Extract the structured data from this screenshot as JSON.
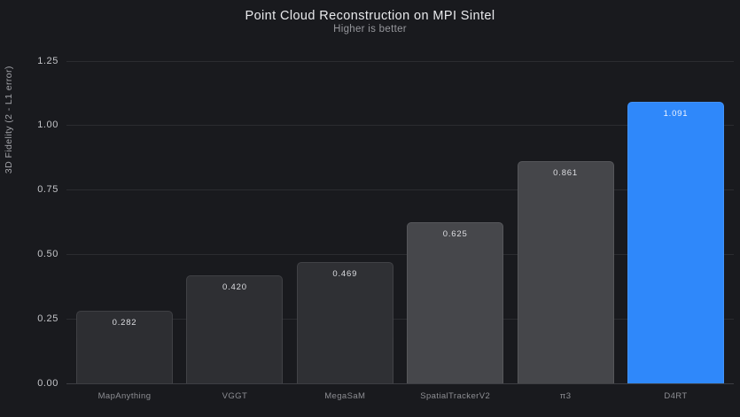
{
  "chart_data": {
    "type": "bar",
    "title": "Point Cloud Reconstruction on MPI Sintel",
    "subtitle": "Higher is better",
    "ylabel": "3D Fidelity (2 - L1 error)",
    "xlabel": "",
    "categories": [
      "MapAnything",
      "VGGT",
      "MegaSaM",
      "SpatialTrackerV2",
      "π3",
      "D4RT"
    ],
    "values": [
      0.282,
      0.42,
      0.469,
      0.625,
      0.861,
      1.091
    ],
    "value_labels": [
      "0.282",
      "0.420",
      "0.469",
      "0.625",
      "0.861",
      "1.091"
    ],
    "bar_colors": [
      "#2d2e32",
      "#2e2f33",
      "#2f3034",
      "#46474b",
      "#45464a",
      "#2f88fa"
    ],
    "highlighted_category": "D4RT",
    "ylim": [
      0,
      1.25
    ],
    "yticks": [
      {
        "value": 0.0,
        "label": "0.00"
      },
      {
        "value": 0.25,
        "label": "0.25"
      },
      {
        "value": 0.5,
        "label": "0.50"
      },
      {
        "value": 0.75,
        "label": "0.75"
      },
      {
        "value": 1.0,
        "label": "1.00"
      },
      {
        "value": 1.25,
        "label": "1.25"
      }
    ],
    "grid": true,
    "legend": false
  },
  "colors": {
    "background": "#191a1e",
    "gridline": "#2b2c30",
    "axis_line": "#3d3e43",
    "title_text": "#e8e9ec",
    "subtitle_text": "#96979c",
    "tick_text": "#c3c4c8",
    "category_text": "#8d8e93",
    "value_text": "#dddee2",
    "highlight": "#2f88fa"
  }
}
